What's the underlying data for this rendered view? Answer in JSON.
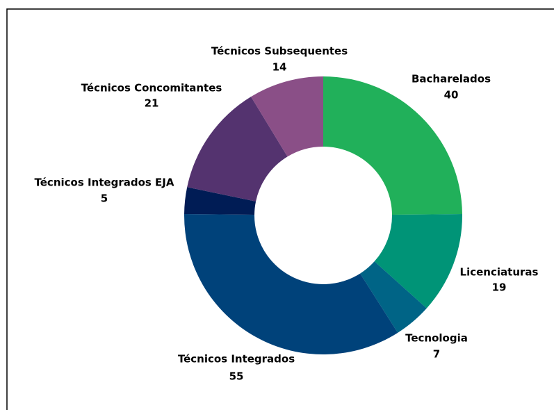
{
  "chart_data": {
    "type": "donut",
    "categories": [
      "Bacharelados",
      "Licenciaturas",
      "Tecnologia",
      "Técnicos Integrados",
      "Técnicos Integrados EJA",
      "Técnicos Concomitantes",
      "Técnicos Subsequentes"
    ],
    "values": [
      40,
      19,
      7,
      55,
      5,
      21,
      14
    ],
    "colors": [
      "#21b05a",
      "#009477",
      "#006486",
      "#00427a",
      "#001c55",
      "#54336f",
      "#8a4f87"
    ]
  }
}
